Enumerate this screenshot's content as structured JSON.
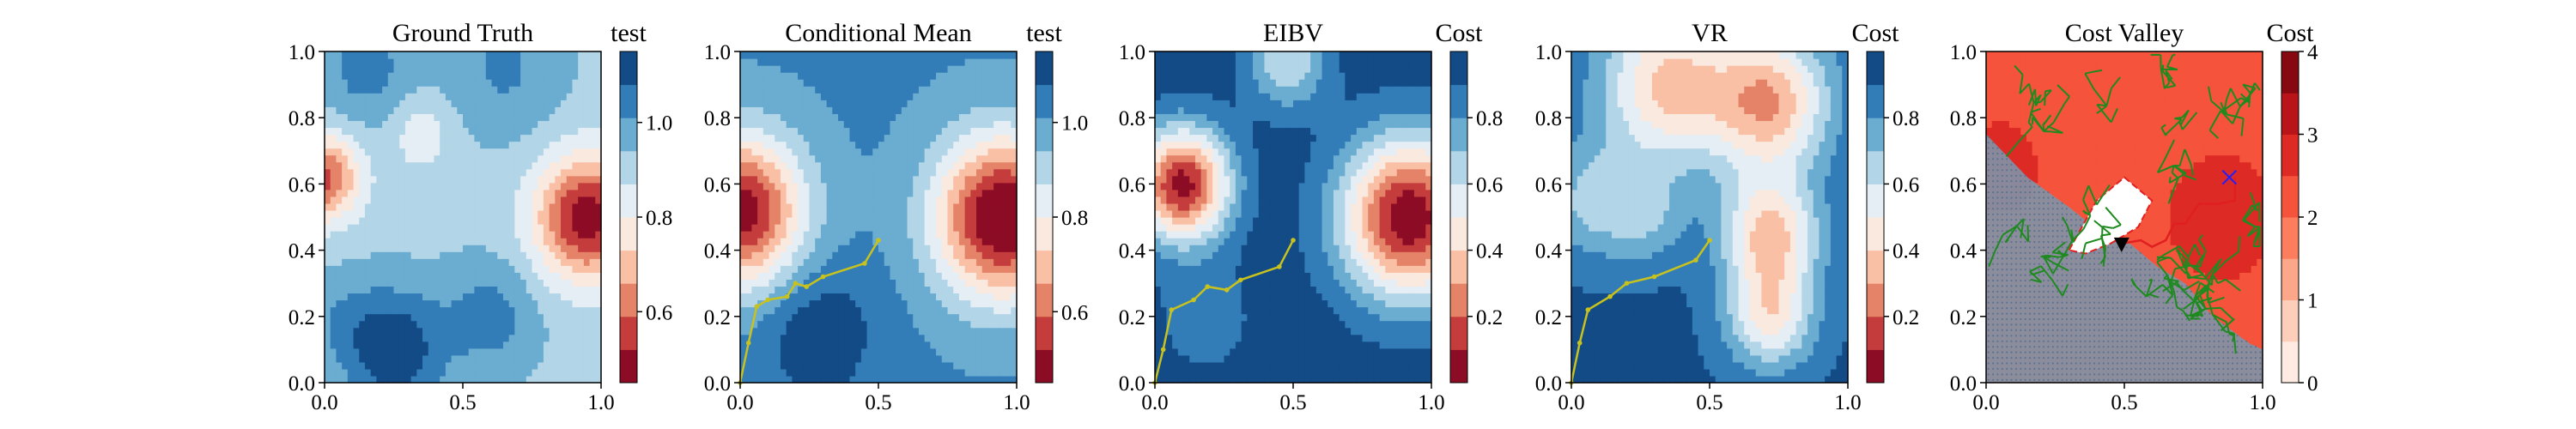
{
  "chart_data": [
    {
      "type": "heatmap",
      "title": "Ground Truth",
      "xlim": [
        0,
        1
      ],
      "ylim": [
        0,
        1
      ],
      "x_ticks": [
        "0.0",
        "0.5",
        "1.0"
      ],
      "y_ticks": [
        "0.0",
        "0.2",
        "0.4",
        "0.6",
        "0.8",
        "1.0"
      ],
      "colormap": "RdBu",
      "colorbar": {
        "label": "test",
        "range": [
          0.45,
          1.15
        ],
        "ticks": [
          "0.6",
          "0.8",
          "1.0"
        ],
        "levels": 10
      },
      "field": {
        "base": 0.92,
        "blobs": [
          {
            "x": 0.95,
            "y": 0.5,
            "a": -0.45,
            "s": 0.13
          },
          {
            "x": 0.0,
            "y": 0.62,
            "a": -0.35,
            "s": 0.09
          },
          {
            "x": 0.35,
            "y": 0.75,
            "a": -0.1,
            "s": 0.08
          },
          {
            "x": 0.25,
            "y": 0.1,
            "a": 0.22,
            "s": 0.13
          },
          {
            "x": 0.6,
            "y": 0.2,
            "a": 0.12,
            "s": 0.12
          },
          {
            "x": 0.15,
            "y": 0.95,
            "a": 0.12,
            "s": 0.12
          },
          {
            "x": 0.65,
            "y": 0.95,
            "a": 0.1,
            "s": 0.15
          },
          {
            "x": 0.05,
            "y": 0.2,
            "a": 0.06,
            "s": 0.1
          }
        ]
      }
    },
    {
      "type": "heatmap",
      "title": "Conditional Mean",
      "xlim": [
        0,
        1
      ],
      "ylim": [
        0,
        1
      ],
      "x_ticks": [
        "0.0",
        "0.5",
        "1.0"
      ],
      "y_ticks": [
        "0.0",
        "0.2",
        "0.4",
        "0.6",
        "0.8",
        "1.0"
      ],
      "colormap": "RdBu",
      "colorbar": {
        "label": "test",
        "range": [
          0.45,
          1.15
        ],
        "ticks": [
          "0.6",
          "0.8",
          "1.0"
        ],
        "levels": 10
      },
      "field": {
        "base": 1.02,
        "blobs": [
          {
            "x": 0.95,
            "y": 0.5,
            "a": -0.6,
            "s": 0.17
          },
          {
            "x": 0.0,
            "y": 0.52,
            "a": -0.55,
            "s": 0.16
          },
          {
            "x": 0.28,
            "y": 0.15,
            "a": 0.12,
            "s": 0.15
          }
        ]
      },
      "path": [
        [
          0.0,
          0.0
        ],
        [
          0.03,
          0.12
        ],
        [
          0.06,
          0.23
        ],
        [
          0.1,
          0.25
        ],
        [
          0.17,
          0.26
        ],
        [
          0.2,
          0.3
        ],
        [
          0.24,
          0.29
        ],
        [
          0.3,
          0.32
        ],
        [
          0.45,
          0.36
        ],
        [
          0.5,
          0.43
        ]
      ],
      "path_color": "#c8c21e"
    },
    {
      "type": "heatmap",
      "title": "EIBV",
      "xlim": [
        0,
        1
      ],
      "ylim": [
        0,
        1
      ],
      "x_ticks": [
        "0.0",
        "0.5",
        "1.0"
      ],
      "y_ticks": [
        "0.0",
        "0.2",
        "0.4",
        "0.6",
        "0.8",
        "1.0"
      ],
      "colormap": "RdBu",
      "colorbar": {
        "label": "Cost",
        "range": [
          0.0,
          1.0
        ],
        "ticks": [
          "0.2",
          "0.4",
          "0.6",
          "0.8"
        ],
        "levels": 10
      },
      "field": {
        "base": 0.96,
        "blobs": [
          {
            "x": 0.92,
            "y": 0.5,
            "a": -0.95,
            "s": 0.17
          },
          {
            "x": 0.1,
            "y": 0.6,
            "a": -0.9,
            "s": 0.12
          },
          {
            "x": 0.48,
            "y": 0.97,
            "a": -0.35,
            "s": 0.1
          },
          {
            "x": 0.18,
            "y": 0.2,
            "a": -0.12,
            "s": 0.12
          }
        ]
      },
      "path": [
        [
          0.0,
          0.0
        ],
        [
          0.03,
          0.1
        ],
        [
          0.06,
          0.22
        ],
        [
          0.14,
          0.25
        ],
        [
          0.19,
          0.29
        ],
        [
          0.26,
          0.28
        ],
        [
          0.31,
          0.31
        ],
        [
          0.45,
          0.35
        ],
        [
          0.5,
          0.43
        ]
      ],
      "path_color": "#c8c21e"
    },
    {
      "type": "heatmap",
      "title": "VR",
      "xlim": [
        0,
        1
      ],
      "ylim": [
        0,
        1
      ],
      "x_ticks": [
        "0.0",
        "0.5",
        "1.0"
      ],
      "y_ticks": [
        "0.0",
        "0.2",
        "0.4",
        "0.6",
        "0.8",
        "1.0"
      ],
      "colormap": "RdBu",
      "colorbar": {
        "label": "Cost",
        "range": [
          0.0,
          1.0
        ],
        "ticks": [
          "0.2",
          "0.4",
          "0.6",
          "0.8"
        ],
        "levels": 10
      },
      "field": {
        "base": 0.92,
        "blobs": [
          {
            "x": 0.35,
            "y": 0.9,
            "a": -0.55,
            "s": 0.17
          },
          {
            "x": 0.72,
            "y": 0.85,
            "a": -0.6,
            "s": 0.15
          },
          {
            "x": 0.72,
            "y": 0.45,
            "a": -0.55,
            "s": 0.12
          },
          {
            "x": 0.72,
            "y": 0.2,
            "a": -0.45,
            "s": 0.11
          },
          {
            "x": 0.08,
            "y": 0.55,
            "a": -0.25,
            "s": 0.12
          },
          {
            "x": 0.28,
            "y": 0.5,
            "a": -0.18,
            "s": 0.1
          }
        ]
      },
      "path": [
        [
          0.0,
          0.0
        ],
        [
          0.03,
          0.12
        ],
        [
          0.06,
          0.22
        ],
        [
          0.14,
          0.26
        ],
        [
          0.2,
          0.3
        ],
        [
          0.3,
          0.32
        ],
        [
          0.45,
          0.37
        ],
        [
          0.5,
          0.43
        ]
      ],
      "path_color": "#c8c21e"
    },
    {
      "type": "heatmap",
      "title": "Cost Valley",
      "xlim": [
        0,
        1
      ],
      "ylim": [
        0,
        1
      ],
      "x_ticks": [
        "0.0",
        "0.5",
        "1.0"
      ],
      "y_ticks": [
        "0.0",
        "0.2",
        "0.4",
        "0.6",
        "0.8",
        "1.0"
      ],
      "colormap": "Reds",
      "colorbar": {
        "label": "Cost",
        "range": [
          0,
          4
        ],
        "ticks": [
          "0",
          "1",
          "2",
          "3",
          "4"
        ],
        "levels": 8
      },
      "field": {
        "base": 2.3,
        "blobs": [
          {
            "x": 0.85,
            "y": 0.5,
            "a": 0.7,
            "s": 0.12
          },
          {
            "x": 0.05,
            "y": 0.65,
            "a": 0.5,
            "s": 0.1
          }
        ]
      },
      "obstacle": {
        "color": "#7f93a8",
        "polygon": [
          [
            0.0,
            0.0
          ],
          [
            0.0,
            0.75
          ],
          [
            0.15,
            0.62
          ],
          [
            0.3,
            0.53
          ],
          [
            0.42,
            0.45
          ],
          [
            0.52,
            0.42
          ],
          [
            0.62,
            0.35
          ],
          [
            0.72,
            0.3
          ],
          [
            0.82,
            0.2
          ],
          [
            0.95,
            0.12
          ],
          [
            1.0,
            0.1
          ],
          [
            1.0,
            0.0
          ]
        ]
      },
      "budget_polygon": [
        [
          0.3,
          0.4
        ],
        [
          0.4,
          0.55
        ],
        [
          0.5,
          0.62
        ],
        [
          0.6,
          0.55
        ],
        [
          0.55,
          0.47
        ],
        [
          0.45,
          0.42
        ],
        [
          0.36,
          0.39
        ]
      ],
      "current_position": [
        0.49,
        0.42
      ],
      "target": [
        0.88,
        0.62
      ],
      "planned_path": [
        [
          0.49,
          0.42
        ],
        [
          0.56,
          0.43
        ],
        [
          0.6,
          0.41
        ],
        [
          0.65,
          0.43
        ],
        [
          0.68,
          0.48
        ],
        [
          0.72,
          0.48
        ],
        [
          0.77,
          0.54
        ],
        [
          0.84,
          0.54
        ],
        [
          0.9,
          0.55
        ],
        [
          0.9,
          0.62
        ]
      ],
      "tree_color": "#1f8a1f",
      "path_color": "#e02020",
      "target_color": "#2020ff"
    }
  ]
}
